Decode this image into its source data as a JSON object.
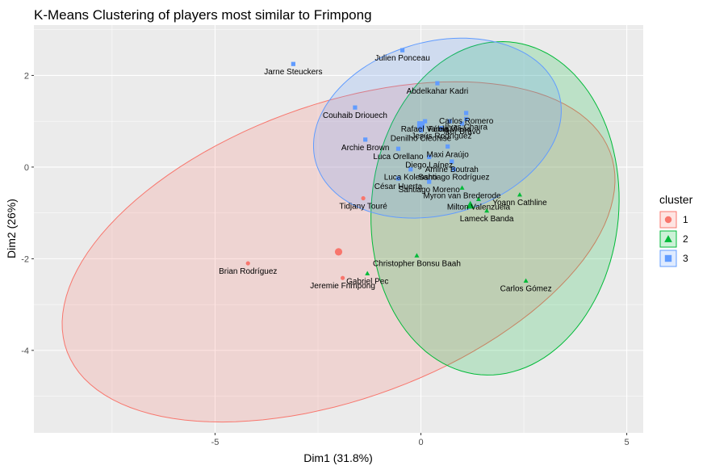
{
  "chart_data": {
    "type": "scatter",
    "title": "K-Means Clustering of players most similar to Frimpong",
    "xlabel": "Dim1 (31.8%)",
    "ylabel": "Dim2 (26%)",
    "xlim": [
      -9.4,
      5.4
    ],
    "ylim": [
      -5.8,
      3.1
    ],
    "xticks": [
      -5,
      0,
      5
    ],
    "yticks": [
      -4,
      -2,
      0,
      2
    ],
    "grid": true,
    "legend": {
      "title": "cluster",
      "position": "right",
      "entries": [
        "1",
        "2",
        "3"
      ]
    },
    "series": [
      {
        "name": "1",
        "color": "#F8766D",
        "marker": "circle",
        "centroid": {
          "x": -2.0,
          "y": -1.85
        },
        "ellipse": {
          "cx": -2.0,
          "cy": -1.85,
          "rx": 6.95,
          "ry": 3.25,
          "angle_deg": 17
        },
        "points": [
          {
            "x": -4.2,
            "y": -2.1,
            "label": "Brian Rodríguez"
          },
          {
            "x": -1.9,
            "y": -2.42,
            "label": "Jeremie Frimpong"
          },
          {
            "x": -1.4,
            "y": -0.68,
            "label": "Tidjany Touré"
          }
        ]
      },
      {
        "name": "2",
        "color": "#00BA38",
        "marker": "triangle",
        "centroid": {
          "x": 1.2,
          "y": -0.83
        },
        "ellipse": {
          "cx": 1.8,
          "cy": -0.9,
          "rx": 3.0,
          "ry": 3.65,
          "angle_deg": -8
        },
        "points": [
          {
            "x": -0.1,
            "y": -1.93,
            "label": "Christopher Bonsu Baah"
          },
          {
            "x": -1.3,
            "y": -2.32,
            "label": "Gabriel Pec"
          },
          {
            "x": 2.55,
            "y": -2.48,
            "label": "Carlos Gómez"
          },
          {
            "x": 2.4,
            "y": -0.6,
            "label": "Yoann Cathline"
          },
          {
            "x": 1.6,
            "y": -0.95,
            "label": "Lameck Banda"
          },
          {
            "x": 1.0,
            "y": -0.45,
            "label": "Myron van Brederode"
          },
          {
            "x": 1.4,
            "y": -0.7,
            "label": "Milton Valenzuela"
          }
        ]
      },
      {
        "name": "3",
        "color": "#619CFF",
        "marker": "square",
        "centroid": {
          "x": 0.0,
          "y": 0.92
        },
        "ellipse": {
          "cx": 0.4,
          "cy": 0.85,
          "rx": 3.05,
          "ry": 1.9,
          "angle_deg": 12
        },
        "points": [
          {
            "x": -3.1,
            "y": 2.25,
            "label": "Jarne Steuckers"
          },
          {
            "x": -0.45,
            "y": 2.55,
            "label": "Julien Ponceau"
          },
          {
            "x": 0.4,
            "y": 1.83,
            "label": "Abdelkahar Kadri"
          },
          {
            "x": -1.6,
            "y": 1.3,
            "label": "Couhaib Driouech"
          },
          {
            "x": 0.1,
            "y": 1.0,
            "label": "Rafael Varela"
          },
          {
            "x": 0.7,
            "y": 1.0,
            "label": "Fábio Vieira"
          },
          {
            "x": 1.1,
            "y": 1.05,
            "label": "Ilyas Chaira"
          },
          {
            "x": 0.5,
            "y": 0.85,
            "label": "Jesús Rodríguez"
          },
          {
            "x": 0.0,
            "y": 0.8,
            "label": "Denilho Cleonise"
          },
          {
            "x": 1.0,
            "y": 0.95,
            "label": "Iker Bravo"
          },
          {
            "x": 1.1,
            "y": 1.18,
            "label": "Carlos Romero"
          },
          {
            "x": -1.35,
            "y": 0.6,
            "label": "Archie Brown"
          },
          {
            "x": -0.55,
            "y": 0.4,
            "label": "Luca Orellano"
          },
          {
            "x": 0.65,
            "y": 0.45,
            "label": "Maxi Araújo"
          },
          {
            "x": 0.2,
            "y": 0.22,
            "label": "Diego Laínez"
          },
          {
            "x": 0.75,
            "y": 0.12,
            "label": "Amine Boutrah"
          },
          {
            "x": -0.25,
            "y": -0.05,
            "label": "Luca Koleosho"
          },
          {
            "x": 0.8,
            "y": -0.05,
            "label": "Santiago Rodríguez"
          },
          {
            "x": -0.55,
            "y": -0.25,
            "label": "César Huerta"
          },
          {
            "x": 0.2,
            "y": -0.32,
            "label": "Santiago Moreno"
          }
        ]
      }
    ]
  }
}
